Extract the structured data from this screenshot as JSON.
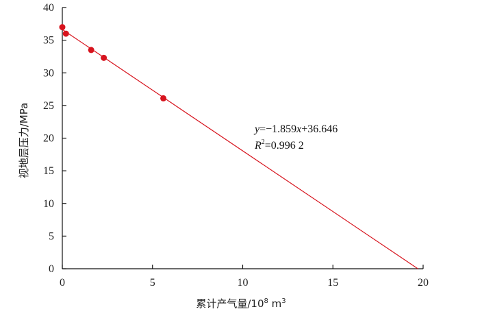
{
  "chart_data": {
    "type": "scatter",
    "title": "",
    "xlabel": "累计产气量/10",
    "xlabel_exp": "8",
    "xlabel_unit": " m",
    "xlabel_unit_exp": "3",
    "ylabel": "视地层压力/MPa",
    "xlim": [
      0,
      20
    ],
    "ylim": [
      0,
      40
    ],
    "x_ticks": [
      0,
      5,
      10,
      15,
      20
    ],
    "y_ticks": [
      0,
      5,
      10,
      15,
      20,
      25,
      30,
      35,
      40
    ],
    "grid": false,
    "marker_color": "#d7141e",
    "line_color": "#d7141e",
    "points": [
      {
        "x": 0.0,
        "y": 37.0
      },
      {
        "x": 0.2,
        "y": 36.0
      },
      {
        "x": 1.6,
        "y": 33.5
      },
      {
        "x": 2.3,
        "y": 32.3
      },
      {
        "x": 5.6,
        "y": 26.1
      }
    ],
    "fit_line": {
      "slope": -1.859,
      "intercept": 36.646,
      "x_start": 0,
      "x_end": 19.71
    },
    "annotation": {
      "eq_var": "y",
      "eq_mid": "=−1.859",
      "eq_var2": "x",
      "eq_end": "+36.646",
      "r2_var": "R",
      "r2_exp": "2",
      "r2_val": "=0.996 2"
    }
  }
}
